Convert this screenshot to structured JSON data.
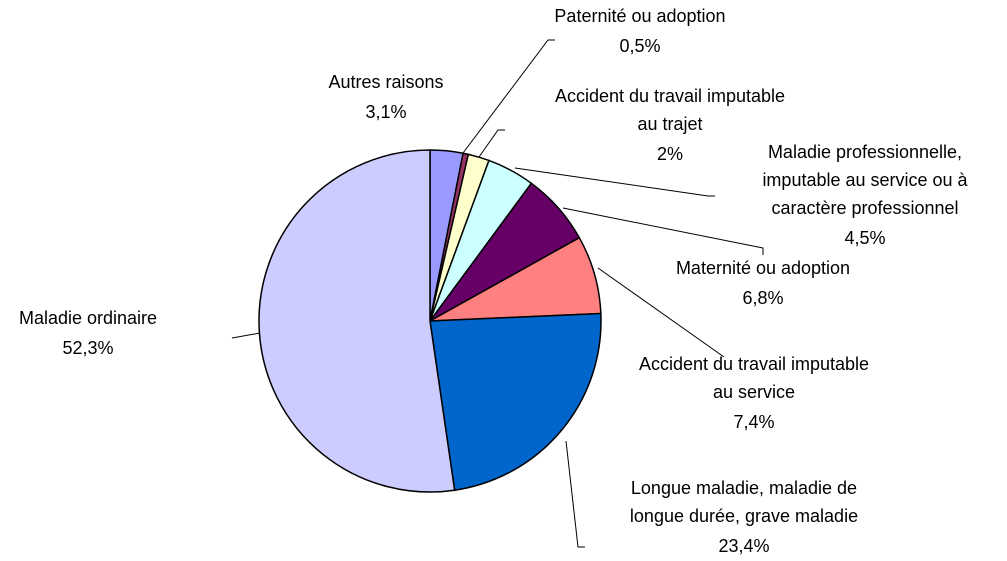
{
  "chart_data": {
    "type": "pie",
    "categories": [
      "Autres raisons",
      "Paternité ou adoption",
      "Accident du travail imputable\nau trajet",
      "Maladie professionnelle,\nimputable au service ou à\ncaractère professionnel",
      "Maternité ou adoption",
      "Accident du travail imputable\nau service",
      "Longue maladie, maladie de\nlongue durée, grave maladie",
      "Maladie ordinaire"
    ],
    "values": [
      3.1,
      0.5,
      2,
      4.5,
      6.8,
      7.4,
      23.4,
      52.3
    ],
    "value_labels": [
      "3,1%",
      "0,5%",
      "2%",
      "4,5%",
      "6,8%",
      "7,4%",
      "23,4%",
      "52,3%"
    ],
    "colors": [
      "#9999ff",
      "#993366",
      "#ffffcc",
      "#ccffff",
      "#660066",
      "#ff8080",
      "#0066cc",
      "#ccccff"
    ]
  }
}
